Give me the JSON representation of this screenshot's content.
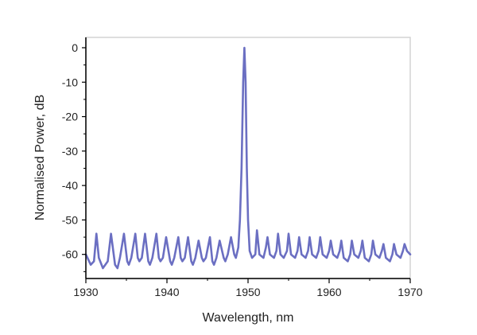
{
  "chart_data": {
    "type": "line",
    "title": "",
    "xlabel": "Wavelength, nm",
    "ylabel": "Normalised Power, dB",
    "xlim": [
      1930,
      1970
    ],
    "ylim": [
      -67,
      3
    ],
    "xticks": [
      1930,
      1940,
      1950,
      1960,
      1970
    ],
    "yticks": [
      0,
      -10,
      -20,
      -30,
      -40,
      -50,
      -60
    ],
    "grid": false,
    "legend": "none",
    "series": [
      {
        "name": "spectrum",
        "color": "#6b6fc2",
        "x": [
          1930.0,
          1930.6,
          1931.0,
          1931.3,
          1931.6,
          1932.1,
          1932.7,
          1933.1,
          1933.6,
          1933.9,
          1934.2,
          1934.7,
          1935.1,
          1935.3,
          1935.6,
          1936.1,
          1936.4,
          1936.6,
          1936.9,
          1937.3,
          1937.7,
          1937.9,
          1938.2,
          1938.7,
          1939.0,
          1939.2,
          1939.5,
          1939.9,
          1940.4,
          1940.6,
          1940.9,
          1941.4,
          1941.7,
          1941.9,
          1942.2,
          1942.6,
          1943.0,
          1943.2,
          1943.5,
          1943.9,
          1944.3,
          1944.5,
          1944.8,
          1945.3,
          1945.6,
          1945.8,
          1946.1,
          1946.5,
          1947.0,
          1947.2,
          1947.5,
          1947.9,
          1948.3,
          1948.5,
          1948.8,
          1949.0,
          1949.2,
          1949.4,
          1949.55,
          1949.7,
          1949.85,
          1950.0,
          1950.2,
          1950.5,
          1950.9,
          1951.1,
          1951.4,
          1951.9,
          1952.2,
          1952.4,
          1952.7,
          1953.2,
          1953.5,
          1953.7,
          1954.0,
          1954.4,
          1954.8,
          1955.0,
          1955.3,
          1955.8,
          1956.1,
          1956.3,
          1956.6,
          1957.1,
          1957.4,
          1957.6,
          1957.9,
          1958.4,
          1958.7,
          1958.9,
          1959.2,
          1959.7,
          1960.0,
          1960.2,
          1960.5,
          1961.0,
          1961.3,
          1961.5,
          1961.8,
          1962.3,
          1962.6,
          1962.8,
          1963.1,
          1963.6,
          1963.9,
          1964.1,
          1964.4,
          1964.9,
          1965.2,
          1965.4,
          1965.7,
          1966.2,
          1966.5,
          1966.7,
          1967.0,
          1967.5,
          1967.8,
          1968.0,
          1968.3,
          1968.8,
          1969.1,
          1969.3,
          1969.6,
          1970.0
        ],
        "y": [
          -60,
          -63,
          -62,
          -54,
          -61,
          -64,
          -62,
          -54,
          -63,
          -64,
          -61,
          -54,
          -62,
          -63,
          -61,
          -54,
          -61,
          -62,
          -61,
          -54,
          -62,
          -63,
          -61,
          -54,
          -61,
          -62,
          -61,
          -55,
          -62,
          -63,
          -61,
          -55,
          -61,
          -62,
          -61,
          -55,
          -62,
          -63,
          -61,
          -56,
          -61,
          -62,
          -61,
          -55,
          -62,
          -63,
          -61,
          -56,
          -61,
          -62,
          -60,
          -55,
          -60,
          -61,
          -58,
          -50,
          -35,
          -10,
          0,
          -10,
          -35,
          -50,
          -59,
          -61,
          -60,
          -53,
          -60,
          -61,
          -58,
          -55,
          -60,
          -61,
          -59,
          -54,
          -60,
          -61,
          -59,
          -54,
          -60,
          -61,
          -59,
          -55,
          -60,
          -61,
          -59,
          -55,
          -60,
          -61,
          -59,
          -55,
          -60,
          -61,
          -59,
          -56,
          -60,
          -61,
          -59,
          -56,
          -61,
          -62,
          -60,
          -56,
          -60,
          -61,
          -59,
          -56,
          -61,
          -62,
          -60,
          -56,
          -60,
          -61,
          -59,
          -57,
          -61,
          -62,
          -60,
          -57,
          -60,
          -61,
          -59,
          -57,
          -59,
          -60
        ]
      }
    ]
  }
}
